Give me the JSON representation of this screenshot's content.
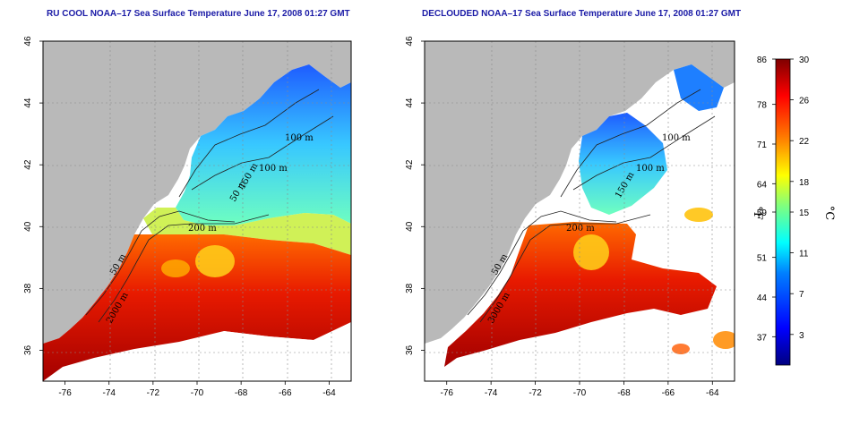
{
  "panels": [
    {
      "id": "left",
      "title": "RU COOL NOAA–17 Sea Surface Temperature June 17, 2008 01:27 GMT",
      "contour_labels": [
        "200 m",
        "100 m",
        "100 m",
        "50 m",
        "150 m",
        "50 m",
        "2000 m"
      ]
    },
    {
      "id": "right",
      "title": "DECLOUDED NOAA–17 Sea Surface Temperature June 17, 2008 01:27 GMT",
      "contour_labels": [
        "200 m",
        "100 m",
        "100 m",
        "150 m",
        "50 m",
        "3000 m"
      ]
    }
  ],
  "axes": {
    "x_ticks": [
      -76,
      -74,
      -72,
      -70,
      -68,
      -66,
      -64
    ],
    "y_ticks": [
      36,
      38,
      40,
      42,
      44,
      46
    ]
  },
  "colorbar": {
    "fahrenheit_label": "°F",
    "celsius_label": "°C",
    "fahrenheit_ticks": [
      "86",
      "78",
      "71",
      "64",
      "59",
      "51",
      "44",
      "37"
    ],
    "celsius_ticks": [
      "30",
      "26",
      "22",
      "18",
      "15",
      "11",
      "7",
      "3"
    ],
    "celsius_range": [
      0,
      30
    ]
  },
  "colors": {
    "land": "#b9b9b9",
    "title": "#1a1aa6",
    "colormap": [
      "#00007f",
      "#0000ff",
      "#007fff",
      "#00ffff",
      "#7fff7f",
      "#ffff00",
      "#ff7f00",
      "#ff0000",
      "#7f0000"
    ]
  }
}
